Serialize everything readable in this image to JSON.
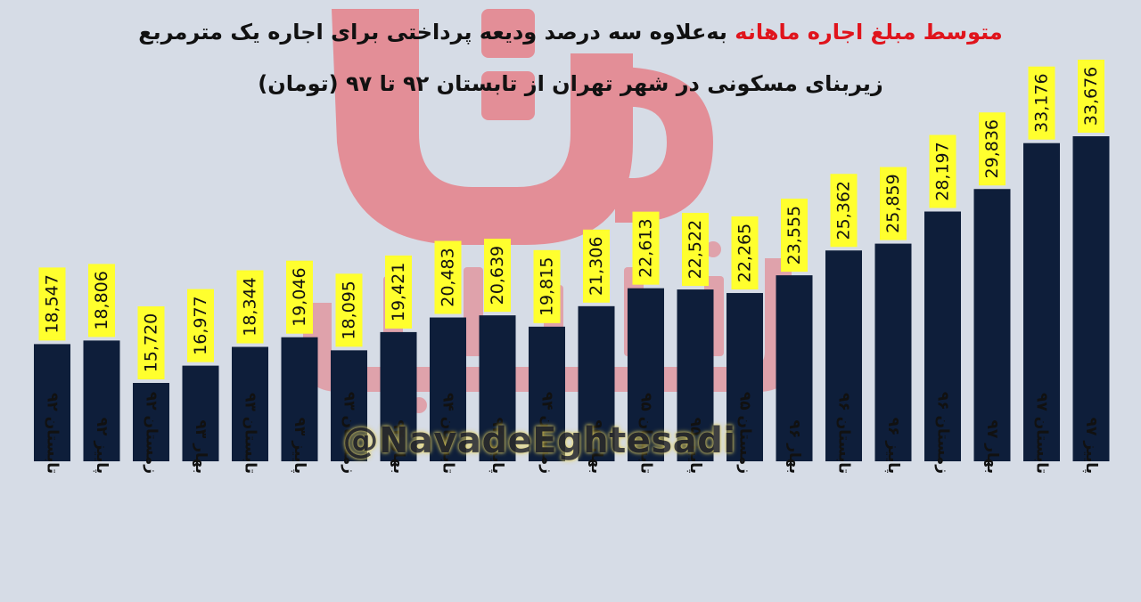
{
  "title": {
    "line1_highlight": "متوسط مبلغ اجاره ماهانه",
    "line1_rest": "به‌علاوه سه درصد ودیعه پرداختی برای اجاره یک مترمربع",
    "line2": "زیربنای مسکونی در شهر تهران از تابستان ۹۲ تا ۹۷ (تومان)"
  },
  "watermark": {
    "handle": "@NavadeEghtesadi",
    "logo_text": "نود اقتصادی"
  },
  "colors": {
    "background": "#d6dce6",
    "bar": "#0e1e3a",
    "label_bg": "#ffff2e",
    "title_red": "#e0141c"
  },
  "chart_data": {
    "type": "bar",
    "categories": [
      "تابستان ۹۲",
      "پاییز ۹۲",
      "زمستان ۹۲",
      "بهار ۹۳",
      "تابستان ۹۳",
      "پاییز ۹۳",
      "زمستان ۹۳",
      "بهار ۹۴",
      "تابستان ۹۴",
      "پاییز ۹۴",
      "زمستان ۹۴",
      "بهار ۹۵",
      "تابستان ۹۵",
      "پاییز ۹۵",
      "زمستان ۹۵",
      "بهار ۹۶",
      "تابستان ۹۶",
      "پاییز ۹۶",
      "زمستان ۹۶",
      "بهار ۹۷",
      "تابستان ۹۷",
      "پاییز ۹۷"
    ],
    "values": [
      18547,
      18806,
      15720,
      16977,
      18344,
      19046,
      18095,
      19421,
      20483,
      20639,
      19815,
      21306,
      22613,
      22522,
      22265,
      23555,
      25362,
      25859,
      28197,
      29836,
      33176,
      33676
    ],
    "labels": [
      "18,547",
      "18,806",
      "15,720",
      "16,977",
      "18,344",
      "19,046",
      "18,095",
      "19,421",
      "20,483",
      "20,639",
      "19,815",
      "21,306",
      "22,613",
      "22,522",
      "22,265",
      "23,555",
      "25,362",
      "25,859",
      "28,197",
      "29,836",
      "33,176",
      "33,676"
    ],
    "grid": false,
    "legend": "none"
  }
}
